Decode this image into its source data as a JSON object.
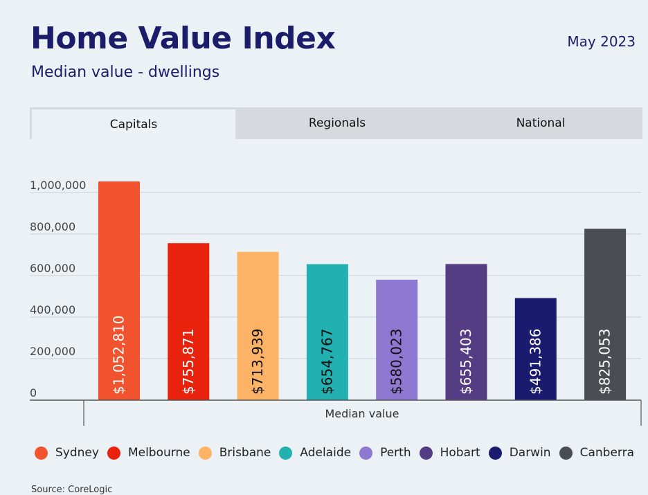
{
  "header": {
    "title": "Home Value Index",
    "subtitle": "Median value - dwellings",
    "date": "May 2023"
  },
  "tabs": [
    {
      "label": "Capitals",
      "active": true
    },
    {
      "label": "Regionals",
      "active": false
    },
    {
      "label": "National",
      "active": false
    }
  ],
  "source": "Source: CoreLogic",
  "chart_data": {
    "type": "bar",
    "xlabel": "Median value",
    "ylabel": "",
    "ylim": [
      0,
      1000000
    ],
    "yticks": [
      0,
      200000,
      400000,
      600000,
      800000,
      1000000
    ],
    "ytick_labels": [
      "0",
      "200,000",
      "400,000",
      "600,000",
      "800,000",
      "1,000,000"
    ],
    "grid": true,
    "categories": [
      "Sydney",
      "Melbourne",
      "Brisbane",
      "Adelaide",
      "Perth",
      "Hobart",
      "Darwin",
      "Canberra"
    ],
    "values": [
      1052810,
      755871,
      713939,
      654767,
      580023,
      655403,
      491386,
      825053
    ],
    "data_labels": [
      "$1,052,810",
      "$755,871",
      "$713,939",
      "$654,767",
      "$580,023",
      "$655,403",
      "$491,386",
      "$825,053"
    ],
    "colors": [
      "#f0532d",
      "#e8220c",
      "#fdb366",
      "#22b0b0",
      "#8e78d2",
      "#553d84",
      "#1a1a6e",
      "#4a4d54"
    ],
    "label_colors": [
      "#ffffff",
      "#ffffff",
      "#111111",
      "#111111",
      "#111111",
      "#ffffff",
      "#ffffff",
      "#ffffff"
    ],
    "legend": [
      "Sydney",
      "Melbourne",
      "Brisbane",
      "Adelaide",
      "Perth",
      "Hobart",
      "Darwin",
      "Canberra"
    ],
    "legend_position": "bottom"
  }
}
